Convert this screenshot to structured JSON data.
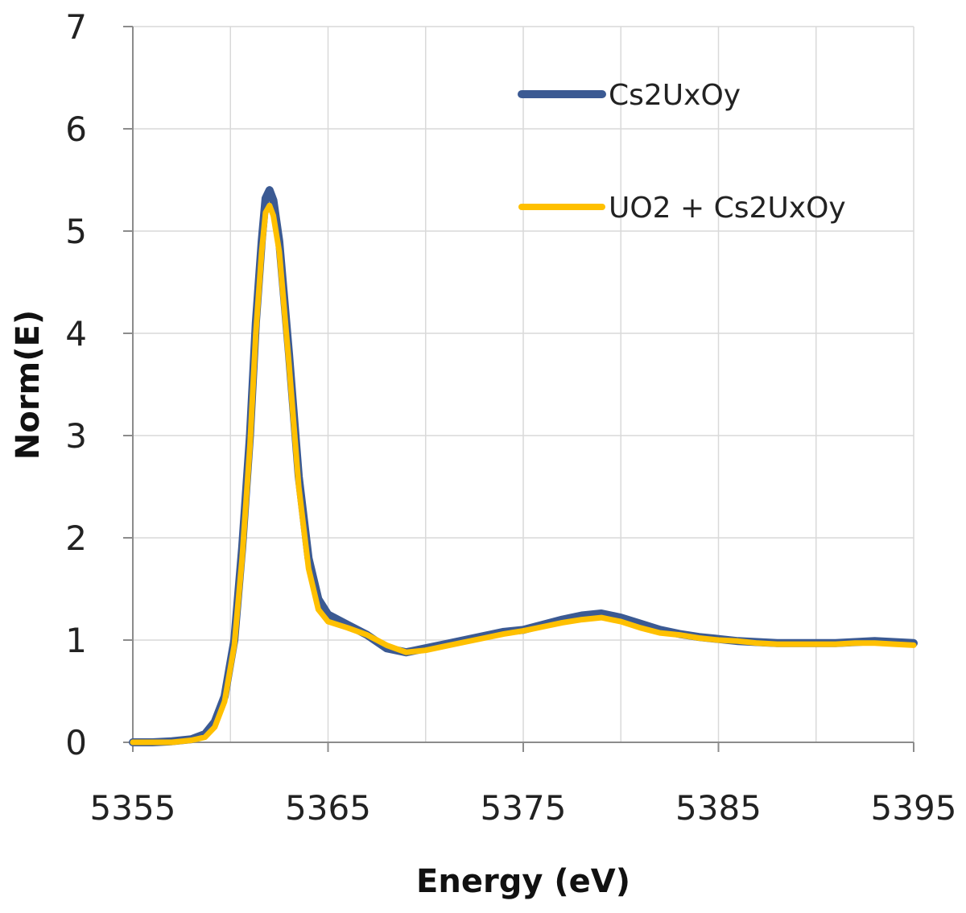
{
  "chart_data": {
    "type": "line",
    "title": "",
    "xlabel": "Energy (eV)",
    "ylabel": "Norm(E)",
    "xlim": [
      5355,
      5395
    ],
    "ylim": [
      0,
      7
    ],
    "xticks": [
      5355,
      5365,
      5375,
      5385,
      5395
    ],
    "yticks": [
      0,
      1,
      2,
      3,
      4,
      5,
      6,
      7
    ],
    "x_minor_gridlines": [
      5360,
      5370,
      5380,
      5390
    ],
    "grid": true,
    "legend_position": "top-right",
    "series": [
      {
        "name": "Cs2UxOy",
        "color": "#3b5a93",
        "points": [
          [
            5355,
            0.0
          ],
          [
            5356,
            0.0
          ],
          [
            5357,
            0.01
          ],
          [
            5358,
            0.03
          ],
          [
            5358.7,
            0.08
          ],
          [
            5359.2,
            0.2
          ],
          [
            5359.7,
            0.45
          ],
          [
            5360.2,
            1.0
          ],
          [
            5360.6,
            1.9
          ],
          [
            5361,
            3.0
          ],
          [
            5361.3,
            4.1
          ],
          [
            5361.6,
            4.9
          ],
          [
            5361.8,
            5.32
          ],
          [
            5362,
            5.4
          ],
          [
            5362.2,
            5.3
          ],
          [
            5362.5,
            4.9
          ],
          [
            5363,
            3.8
          ],
          [
            5363.5,
            2.6
          ],
          [
            5364,
            1.8
          ],
          [
            5364.5,
            1.4
          ],
          [
            5365,
            1.25
          ],
          [
            5366,
            1.15
          ],
          [
            5367,
            1.05
          ],
          [
            5368,
            0.92
          ],
          [
            5369,
            0.88
          ],
          [
            5370,
            0.92
          ],
          [
            5371,
            0.96
          ],
          [
            5372,
            1.0
          ],
          [
            5373,
            1.04
          ],
          [
            5374,
            1.08
          ],
          [
            5375,
            1.1
          ],
          [
            5376,
            1.15
          ],
          [
            5377,
            1.2
          ],
          [
            5378,
            1.24
          ],
          [
            5379,
            1.26
          ],
          [
            5380,
            1.22
          ],
          [
            5381,
            1.16
          ],
          [
            5382,
            1.1
          ],
          [
            5383,
            1.06
          ],
          [
            5384,
            1.03
          ],
          [
            5385,
            1.01
          ],
          [
            5386,
            0.99
          ],
          [
            5387,
            0.98
          ],
          [
            5388,
            0.97
          ],
          [
            5389,
            0.97
          ],
          [
            5390,
            0.97
          ],
          [
            5391,
            0.97
          ],
          [
            5392,
            0.98
          ],
          [
            5393,
            0.99
          ],
          [
            5394,
            0.98
          ],
          [
            5395,
            0.97
          ]
        ]
      },
      {
        "name": "UO2 + Cs2UxOy",
        "color": "#ffc000",
        "points": [
          [
            5355,
            0.0
          ],
          [
            5356,
            0.0
          ],
          [
            5357,
            0.0
          ],
          [
            5358,
            0.02
          ],
          [
            5358.7,
            0.05
          ],
          [
            5359.2,
            0.15
          ],
          [
            5359.7,
            0.4
          ],
          [
            5360.2,
            0.95
          ],
          [
            5360.6,
            1.8
          ],
          [
            5361,
            2.9
          ],
          [
            5361.3,
            4.0
          ],
          [
            5361.6,
            4.8
          ],
          [
            5361.8,
            5.18
          ],
          [
            5362,
            5.25
          ],
          [
            5362.2,
            5.15
          ],
          [
            5362.5,
            4.8
          ],
          [
            5363,
            3.7
          ],
          [
            5363.5,
            2.5
          ],
          [
            5364,
            1.7
          ],
          [
            5364.5,
            1.3
          ],
          [
            5365,
            1.18
          ],
          [
            5366,
            1.12
          ],
          [
            5367,
            1.05
          ],
          [
            5368,
            0.95
          ],
          [
            5369,
            0.88
          ],
          [
            5370,
            0.9
          ],
          [
            5371,
            0.94
          ],
          [
            5372,
            0.98
          ],
          [
            5373,
            1.02
          ],
          [
            5374,
            1.06
          ],
          [
            5375,
            1.09
          ],
          [
            5376,
            1.13
          ],
          [
            5377,
            1.17
          ],
          [
            5378,
            1.2
          ],
          [
            5379,
            1.22
          ],
          [
            5380,
            1.18
          ],
          [
            5381,
            1.12
          ],
          [
            5382,
            1.07
          ],
          [
            5383,
            1.05
          ],
          [
            5384,
            1.02
          ],
          [
            5385,
            1.0
          ],
          [
            5386,
            0.99
          ],
          [
            5387,
            0.97
          ],
          [
            5388,
            0.96
          ],
          [
            5389,
            0.96
          ],
          [
            5390,
            0.96
          ],
          [
            5391,
            0.96
          ],
          [
            5392,
            0.97
          ],
          [
            5393,
            0.97
          ],
          [
            5394,
            0.96
          ],
          [
            5395,
            0.95
          ]
        ]
      }
    ]
  }
}
